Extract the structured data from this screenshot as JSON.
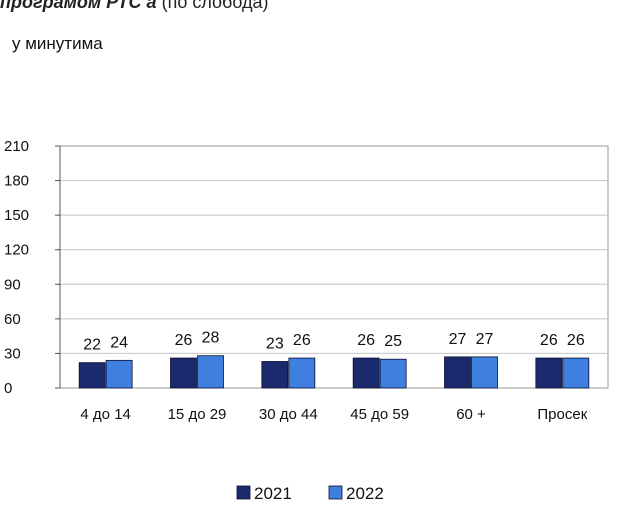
{
  "header": {
    "caption_bold": "програмом РТС а",
    "caption_rest": "(по слобода)"
  },
  "chart_data": {
    "type": "bar",
    "unit_label": "у минутима",
    "categories": [
      "4 до 14",
      "15 до 29",
      "30 до 44",
      "45 до 59",
      "60 +",
      "Просек"
    ],
    "series": [
      {
        "name": "2021",
        "values": [
          22,
          26,
          23,
          26,
          27,
          26
        ],
        "color": "#1a2a6c"
      },
      {
        "name": "2022",
        "values": [
          24,
          28,
          26,
          25,
          27,
          26
        ],
        "color": "#3f7fe0"
      }
    ],
    "ylim": [
      0,
      210
    ],
    "yticks": [
      "210",
      "180",
      "150",
      "120",
      "90",
      "60",
      "30",
      "0"
    ],
    "grid": true,
    "legend_placement": "bottom-center"
  }
}
